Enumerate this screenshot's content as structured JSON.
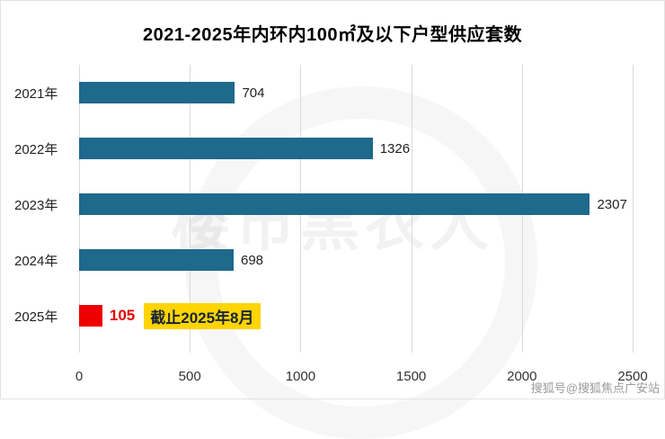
{
  "title": "2021-2025年内环内100㎡及以下户型供应套数",
  "chart_data": {
    "type": "bar",
    "orientation": "horizontal",
    "title": "2021-2025年内环内100㎡及以下户型供应套数",
    "categories": [
      "2021年",
      "2022年",
      "2023年",
      "2024年",
      "2025年"
    ],
    "values": [
      704,
      1326,
      2307,
      698,
      105
    ],
    "bar_colors": [
      "#1e698c",
      "#1e698c",
      "#1e698c",
      "#1e698c",
      "#ee0000"
    ],
    "value_colors": [
      "#222222",
      "#222222",
      "#222222",
      "#222222",
      "#e60000"
    ],
    "emphasis_index": 4,
    "annotation": {
      "row_index": 4,
      "text": "截止2025年8月",
      "bg": "#ffd400",
      "color": "#16243a"
    },
    "xlim": [
      0,
      2500
    ],
    "xticks": [
      0,
      500,
      1000,
      1500,
      2000,
      2500
    ],
    "grid": "vertical",
    "legend": "none"
  },
  "watermark": {
    "center_text": "楼市黑衣人",
    "bottom_right_text": "搜狐号@搜狐焦点广安站"
  },
  "colors": {
    "bar": "#1e698c",
    "emphasis_bar": "#ee0000",
    "annotation_bg": "#ffd400",
    "gridline": "#d9d9d9"
  }
}
